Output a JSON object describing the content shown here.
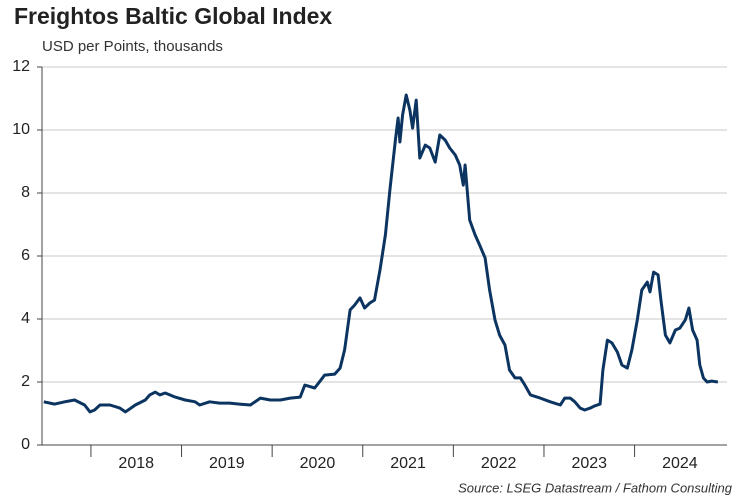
{
  "chart_data": {
    "type": "line",
    "title": "Freightos Baltic Global Index",
    "subtitle": "USD per Points, thousands",
    "source": "Source: LSEG Datastream / Fathom Consulting",
    "x": [
      2017.48,
      2017.6,
      2017.71,
      2017.82,
      2017.93,
      2017.99,
      2018.04,
      2018.1,
      2018.21,
      2018.32,
      2018.38,
      2018.49,
      2018.6,
      2018.65,
      2018.71,
      2018.76,
      2018.82,
      2018.93,
      2019.04,
      2019.15,
      2019.2,
      2019.31,
      2019.42,
      2019.53,
      2019.64,
      2019.76,
      2019.87,
      2019.98,
      2020.09,
      2020.2,
      2020.31,
      2020.36,
      2020.47,
      2020.58,
      2020.69,
      2020.75,
      2020.8,
      2020.86,
      2020.91,
      2020.97,
      2021.02,
      2021.08,
      2021.13,
      2021.19,
      2021.25,
      2021.3,
      2021.36,
      2021.39,
      2021.41,
      2021.44,
      2021.48,
      2021.52,
      2021.55,
      2021.59,
      2021.63,
      2021.69,
      2021.74,
      2021.8,
      2021.85,
      2021.91,
      2021.96,
      2022.02,
      2022.07,
      2022.11,
      2022.13,
      2022.18,
      2022.24,
      2022.29,
      2022.35,
      2022.4,
      2022.46,
      2022.51,
      2022.57,
      2022.62,
      2022.68,
      2022.74,
      2022.79,
      2022.85,
      2022.96,
      2023.07,
      2023.18,
      2023.23,
      2023.29,
      2023.34,
      2023.4,
      2023.45,
      2023.51,
      2023.56,
      2023.62,
      2023.65,
      2023.7,
      2023.75,
      2023.81,
      2023.86,
      2023.92,
      2023.97,
      2024.03,
      2024.08,
      2024.14,
      2024.17,
      2024.21,
      2024.26,
      2024.29,
      2024.34,
      2024.39,
      2024.45,
      2024.5,
      2024.56,
      2024.6,
      2024.64,
      2024.69,
      2024.72,
      2024.76,
      2024.8,
      2024.85,
      2024.92
    ],
    "series": [
      {
        "name": "Freightos Baltic Global Index",
        "color": "#0c3461",
        "values": [
          1.37,
          1.3,
          1.37,
          1.43,
          1.27,
          1.05,
          1.11,
          1.27,
          1.27,
          1.17,
          1.05,
          1.27,
          1.43,
          1.59,
          1.68,
          1.59,
          1.65,
          1.52,
          1.43,
          1.37,
          1.27,
          1.37,
          1.33,
          1.33,
          1.3,
          1.27,
          1.49,
          1.43,
          1.43,
          1.49,
          1.52,
          1.9,
          1.81,
          2.22,
          2.25,
          2.44,
          3.02,
          4.29,
          4.44,
          4.67,
          4.35,
          4.51,
          4.6,
          5.56,
          6.67,
          8.1,
          9.68,
          10.38,
          9.62,
          10.48,
          11.11,
          10.63,
          10.06,
          10.95,
          9.11,
          9.52,
          9.43,
          8.98,
          9.84,
          9.68,
          9.43,
          9.21,
          8.89,
          8.25,
          8.89,
          7.14,
          6.67,
          6.35,
          5.94,
          4.92,
          3.97,
          3.49,
          3.17,
          2.38,
          2.13,
          2.13,
          1.9,
          1.59,
          1.49,
          1.37,
          1.27,
          1.49,
          1.49,
          1.37,
          1.17,
          1.11,
          1.17,
          1.24,
          1.3,
          2.38,
          3.33,
          3.24,
          2.95,
          2.54,
          2.44,
          3.02,
          3.97,
          4.92,
          5.17,
          4.86,
          5.49,
          5.4,
          4.6,
          3.49,
          3.24,
          3.65,
          3.71,
          3.97,
          4.35,
          3.65,
          3.33,
          2.54,
          2.13,
          2.0,
          2.03,
          2.0
        ]
      }
    ],
    "xlim": [
      2017.46,
      2025.02
    ],
    "xticks": [
      {
        "value": 2018,
        "label": "2018"
      },
      {
        "value": 2019,
        "label": "2019"
      },
      {
        "value": 2020,
        "label": "2020"
      },
      {
        "value": 2021,
        "label": "2021"
      },
      {
        "value": 2022,
        "label": "2022"
      },
      {
        "value": 2023,
        "label": "2023"
      },
      {
        "value": 2024,
        "label": "2024"
      }
    ],
    "ylim": [
      0,
      12
    ],
    "yticks": [
      0,
      2,
      4,
      6,
      8,
      10,
      12
    ],
    "grid": true
  }
}
